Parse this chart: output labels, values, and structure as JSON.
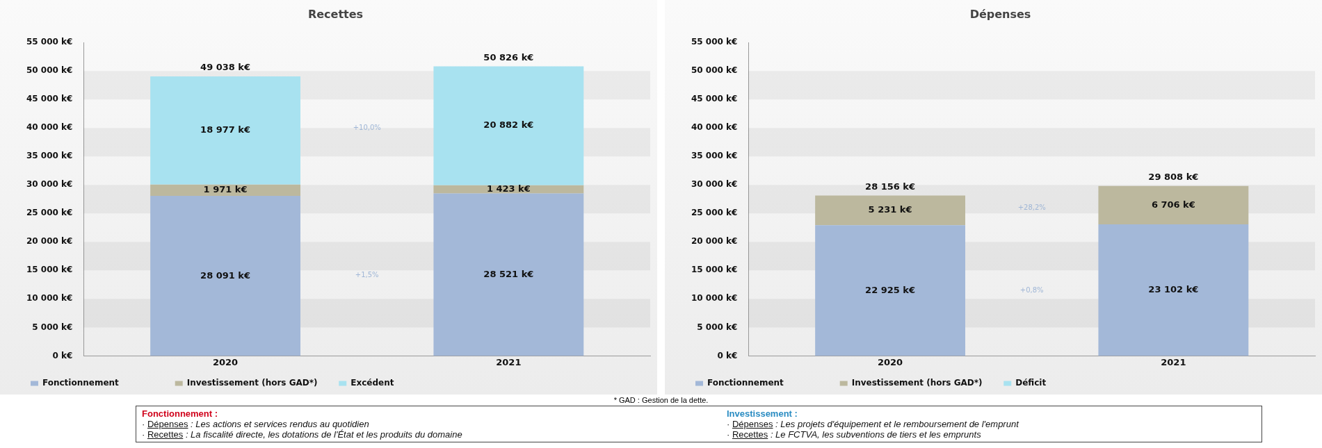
{
  "chart_data": [
    {
      "type": "bar",
      "title": "Recettes",
      "stacked": true,
      "categories": [
        "2020",
        "2021"
      ],
      "series": [
        {
          "name": "Fonctionnement",
          "color": "#a3b8d8",
          "values": [
            28091,
            28521
          ],
          "value_labels": [
            "28 091 k€",
            "28 521 k€"
          ]
        },
        {
          "name": "Investissement (hors GAD*)",
          "color": "#bcb89e",
          "values": [
            1971,
            1423
          ],
          "value_labels": [
            "1 971 k€",
            "1 423 k€"
          ]
        },
        {
          "name": "Excédent",
          "color": "#a8e2f0",
          "values": [
            18977,
            20882
          ],
          "value_labels": [
            "18 977 k€",
            "20 882 k€"
          ]
        }
      ],
      "totals": [
        "49 038 k€",
        "50 826 k€"
      ],
      "ylim": [
        0,
        55000
      ],
      "yticks": [
        {
          "value": 0,
          "label": "0 k€"
        },
        {
          "value": 5000,
          "label": "5 000 k€"
        },
        {
          "value": 10000,
          "label": "10 000 k€"
        },
        {
          "value": 15000,
          "label": "15 000 k€"
        },
        {
          "value": 20000,
          "label": "20 000 k€"
        },
        {
          "value": 25000,
          "label": "25 000 k€"
        },
        {
          "value": 30000,
          "label": "30 000 k€"
        },
        {
          "value": 35000,
          "label": "35 000 k€"
        },
        {
          "value": 40000,
          "label": "40 000 k€"
        },
        {
          "value": 45000,
          "label": "45 000 k€"
        },
        {
          "value": 50000,
          "label": "50 000 k€"
        },
        {
          "value": 55000,
          "label": "55 000 k€"
        }
      ],
      "legend": "bottom left",
      "annotations": [
        "+10,0%",
        "+1,5%"
      ]
    },
    {
      "type": "bar",
      "title": "Dépenses",
      "stacked": true,
      "categories": [
        "2020",
        "2021"
      ],
      "series": [
        {
          "name": "Fonctionnement",
          "color": "#a3b8d8",
          "values": [
            22925,
            23102
          ],
          "value_labels": [
            "22 925 k€",
            "23 102 k€"
          ]
        },
        {
          "name": "Investissement (hors GAD*)",
          "color": "#bcb89e",
          "values": [
            5231,
            6706
          ],
          "value_labels": [
            "5 231 k€",
            "6 706 k€"
          ]
        },
        {
          "name": "Déficit",
          "color": "#a8e2f0",
          "values": [
            null,
            null
          ]
        }
      ],
      "totals": [
        "28 156 k€",
        "29 808 k€"
      ],
      "ylim": [
        0,
        55000
      ],
      "yticks": [
        {
          "value": 0,
          "label": "0 k€"
        },
        {
          "value": 5000,
          "label": "5 000 k€"
        },
        {
          "value": 10000,
          "label": "10 000 k€"
        },
        {
          "value": 15000,
          "label": "15 000 k€"
        },
        {
          "value": 20000,
          "label": "20 000 k€"
        },
        {
          "value": 25000,
          "label": "25 000 k€"
        },
        {
          "value": 30000,
          "label": "30 000 k€"
        },
        {
          "value": 35000,
          "label": "35 000 k€"
        },
        {
          "value": 40000,
          "label": "40 000 k€"
        },
        {
          "value": 45000,
          "label": "45 000 k€"
        },
        {
          "value": 50000,
          "label": "50 000 k€"
        },
        {
          "value": 55000,
          "label": "55 000 k€"
        }
      ],
      "legend": "bottom left",
      "annotations": [
        "+28,2%",
        "+0,8%",
        "* GAD : Gestion de la dette.",
        "Fonctionnement :",
        "· Dépenses : Les actions et services rendus au quotidien",
        "· Recettes : La fiscalité directe, les dotations de l'État et les produits du domaine",
        "Investissement :",
        "· Dépenses : Les projets d'équipement et le remboursement de l'emprunt",
        "· Recettes : Le FCTVA, les subventions de tiers et les emprunts"
      ]
    }
  ]
}
